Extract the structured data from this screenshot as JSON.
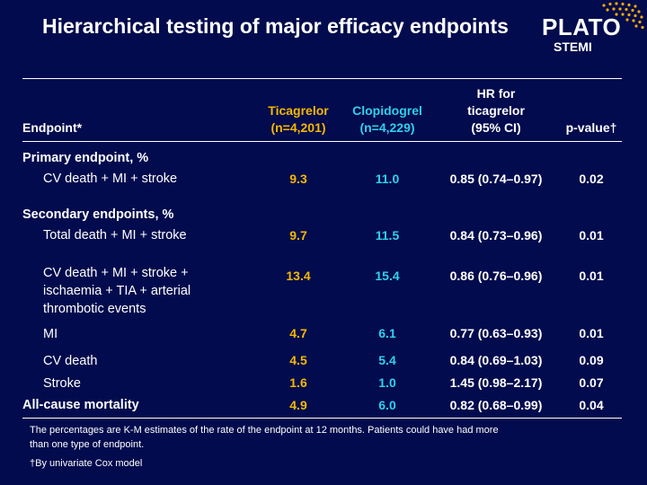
{
  "slide": {
    "title": "Hierarchical testing of major efficacy endpoints",
    "logo": {
      "word": "PLATO",
      "subtitle": "STEMI"
    }
  },
  "colors": {
    "background": "#020b4d",
    "ticagrelor": "#f5b800",
    "clopidogrel": "#2fd0ec",
    "text": "#ffffff",
    "logo_dots": "#f2a900"
  },
  "table": {
    "headers": {
      "endpoint": "Endpoint*",
      "ticagrelor": [
        "Ticagrelor",
        "(n=4,201)"
      ],
      "clopidogrel": [
        "Clopidogrel",
        "(n=4,229)"
      ],
      "hr": [
        "HR for",
        "ticagrelor",
        "(95% CI)"
      ],
      "pvalue": "p-value†"
    },
    "sections": {
      "primary": "Primary endpoint, %",
      "secondary": "Secondary endpoints, %"
    },
    "rows": [
      {
        "endpoint": [
          "CV death + MI + stroke"
        ],
        "ticagrelor": "9.3",
        "clopidogrel": "11.0",
        "hr": "0.85 (0.74–0.97)",
        "p": "0.02"
      },
      {
        "endpoint": [
          "Total death + MI + stroke"
        ],
        "ticagrelor": "9.7",
        "clopidogrel": "11.5",
        "hr": "0.84 (0.73–0.96)",
        "p": "0.01"
      },
      {
        "endpoint": [
          "CV death + MI + stroke +",
          "ischaemia + TIA + arterial",
          "thrombotic events"
        ],
        "ticagrelor": "13.4",
        "clopidogrel": "15.4",
        "hr": "0.86 (0.76–0.96)",
        "p": "0.01"
      },
      {
        "endpoint": [
          "MI"
        ],
        "ticagrelor": "4.7",
        "clopidogrel": "6.1",
        "hr": "0.77 (0.63–0.93)",
        "p": "0.01"
      },
      {
        "endpoint": [
          "CV death"
        ],
        "ticagrelor": "4.5",
        "clopidogrel": "5.4",
        "hr": "0.84 (0.69–1.03)",
        "p": "0.09"
      },
      {
        "endpoint": [
          "Stroke"
        ],
        "ticagrelor": "1.6",
        "clopidogrel": "1.0",
        "hr": "1.45 (0.98–2.17)",
        "p": "0.07"
      },
      {
        "endpoint": [
          "All-cause mortality"
        ],
        "ticagrelor": "4.9",
        "clopidogrel": "6.0",
        "hr": "0.82 (0.68–0.99)",
        "p": "0.04"
      }
    ]
  },
  "footnotes": {
    "note": [
      "The percentages are K-M estimates of the rate of the endpoint at 12 months. Patients could have had more",
      "than one type of endpoint."
    ],
    "dagger": "†By univariate Cox model"
  }
}
